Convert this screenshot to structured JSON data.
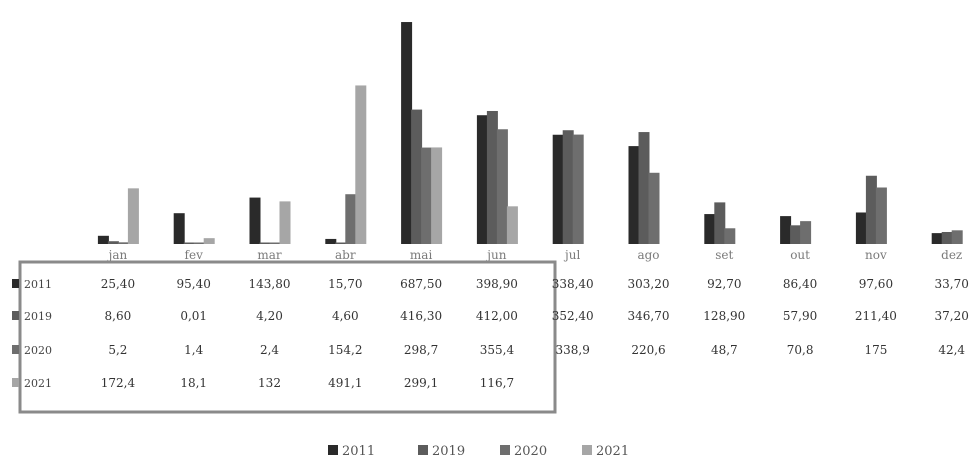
{
  "chart_data": {
    "type": "bar",
    "title": "",
    "xlabel": "",
    "ylabel": "",
    "ylim": [
      0,
      700
    ],
    "grid": false,
    "legend_placement": "bottom",
    "categories": [
      "jan",
      "fev",
      "mar",
      "abr",
      "mai",
      "jun",
      "jul",
      "ago",
      "set",
      "out",
      "nov",
      "dez"
    ],
    "series": [
      {
        "name": "2011",
        "color": "#2a2a2a",
        "values": [
          25.4,
          95.4,
          143.8,
          15.7,
          687.5,
          398.9,
          338.4,
          303.2,
          92.7,
          86.4,
          97.6,
          33.7
        ],
        "labels": [
          "25,40",
          "95,40",
          "143,80",
          "15,70",
          "687,50",
          "398,90",
          "338,40",
          "303,20",
          "92,70",
          "86,40",
          "97,60",
          "33,70"
        ]
      },
      {
        "name": "2019",
        "color": "#5c5c5c",
        "values": [
          8.6,
          0.01,
          4.2,
          4.6,
          416.3,
          412.0,
          352.4,
          346.7,
          128.9,
          57.9,
          211.4,
          37.2
        ],
        "labels": [
          "8,60",
          "0,01",
          "4,20",
          "4,60",
          "416,30",
          "412,00",
          "352,40",
          "346,70",
          "128,90",
          "57,90",
          "211,40",
          "37,20"
        ]
      },
      {
        "name": "2020",
        "color": "#6e6e6e",
        "values": [
          5.2,
          1.4,
          2.4,
          154.2,
          298.7,
          355.4,
          338.9,
          220.6,
          48.7,
          70.8,
          175,
          42.4
        ],
        "labels": [
          "5,2",
          "1,4",
          "2,4",
          "154,2",
          "298,7",
          "355,4",
          "338,9",
          "220,6",
          "48,7",
          "70,8",
          "175",
          "42,4"
        ]
      },
      {
        "name": "2021",
        "color": "#a6a6a6",
        "values": [
          172.4,
          18.1,
          132,
          491.1,
          299.1,
          116.7,
          null,
          null,
          null,
          null,
          null,
          null
        ],
        "labels": [
          "172,4",
          "18,1",
          "132",
          "491,1",
          "299,1",
          "116,7",
          "",
          "",
          "",
          "",
          "",
          ""
        ]
      }
    ]
  },
  "legend": {
    "items": [
      {
        "label": "2011"
      },
      {
        "label": "2019"
      },
      {
        "label": "2020"
      },
      {
        "label": "2021"
      }
    ]
  }
}
